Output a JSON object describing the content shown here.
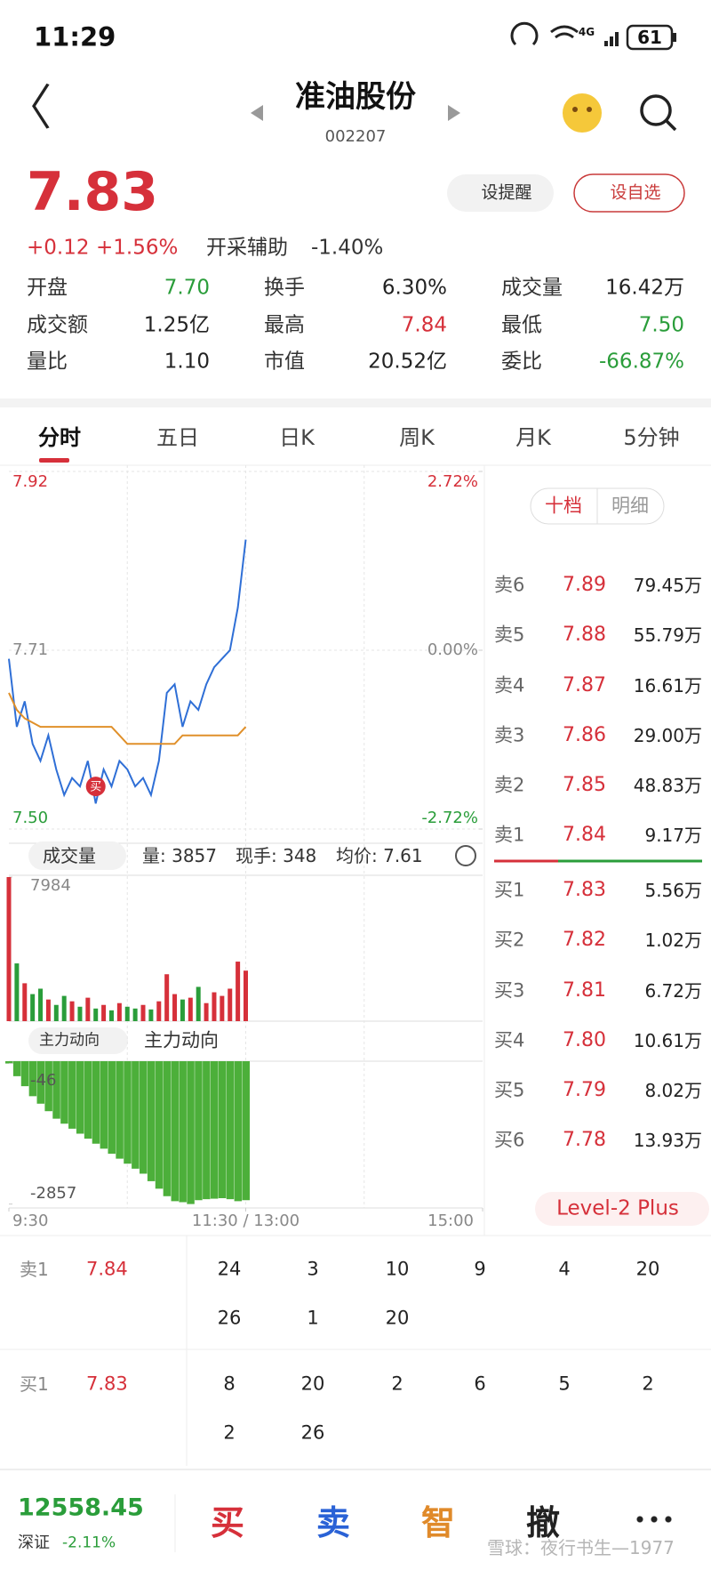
{
  "status_bar": {
    "time": "11:29",
    "network": "4G",
    "battery": "61"
  },
  "header": {
    "title": "准油股份",
    "code": "002207"
  },
  "quote": {
    "price": "7.83",
    "change": "+0.12",
    "change_pct": "+1.56%",
    "assist_label": "开采辅助",
    "assist_value": "-1.40%",
    "buttons": [
      "设提醒",
      "设自选"
    ]
  },
  "stats": [
    {
      "label": "开盘",
      "value": "7.70",
      "color": "#2a9d3a"
    },
    {
      "label": "换手",
      "value": "6.30%",
      "color": "#222222"
    },
    {
      "label": "成交量",
      "value": "16.42万",
      "color": "#222222"
    },
    {
      "label": "成交额",
      "value": "1.25亿",
      "color": "#222222"
    },
    {
      "label": "最高",
      "value": "7.84",
      "color": "#d6303a"
    },
    {
      "label": "最低",
      "value": "7.50",
      "color": "#2a9d3a"
    },
    {
      "label": "量比",
      "value": "1.10",
      "color": "#222222"
    },
    {
      "label": "市值",
      "value": "20.52亿",
      "color": "#222222"
    },
    {
      "label": "委比",
      "value": "-66.87%",
      "color": "#2a9d3a"
    }
  ],
  "tabs": [
    "分时",
    "五日",
    "日K",
    "周K",
    "月K",
    "5分钟"
  ],
  "chart_data": [
    {
      "type": "line",
      "x": [
        0,
        4,
        8,
        12,
        16,
        20,
        24,
        28,
        32,
        36,
        40,
        44,
        48,
        52,
        56,
        60,
        64,
        68,
        72,
        76,
        80,
        84,
        88,
        92,
        96,
        100,
        104,
        108,
        112,
        116,
        120
      ],
      "series": [
        {
          "color": "#2f6fd6",
          "values": [
            7.7,
            7.62,
            7.65,
            7.6,
            7.58,
            7.61,
            7.57,
            7.54,
            7.56,
            7.55,
            7.58,
            7.53,
            7.57,
            7.55,
            7.58,
            7.57,
            7.55,
            7.56,
            7.54,
            7.58,
            7.66,
            7.67,
            7.62,
            7.65,
            7.64,
            7.67,
            7.69,
            7.7,
            7.71,
            7.76,
            7.84
          ]
        },
        {
          "color": "#e0902a",
          "values": [
            7.66,
            7.64,
            7.63,
            7.625,
            7.62,
            7.62,
            7.62,
            7.62,
            7.62,
            7.62,
            7.62,
            7.62,
            7.62,
            7.62,
            7.61,
            7.6,
            7.6,
            7.6,
            7.6,
            7.6,
            7.6,
            7.6,
            7.61,
            7.61,
            7.61,
            7.61,
            7.61,
            7.61,
            7.61,
            7.61,
            7.62
          ]
        }
      ],
      "xlim": [
        0,
        240
      ],
      "xticks": [
        {
          "value": 0,
          "label": "9:30"
        },
        {
          "value": 120,
          "label": "11:30 / 13:00"
        },
        {
          "value": 240,
          "label": "15:00"
        }
      ],
      "ylim": [
        7.5,
        7.92
      ],
      "yticks": [
        7.92,
        7.71,
        {
          "value": 7.5,
          "label": "7.50"
        }
      ],
      "y2lim": [
        -2.72,
        2.72
      ],
      "y2ticks": [
        {
          "value": 2.72,
          "label": "2.72%"
        },
        {
          "value": 0,
          "label": "0.00%"
        },
        {
          "value": -2.72,
          "label": "-2.72%"
        }
      ],
      "marker": {
        "label": "买",
        "x": 44,
        "y": 7.55,
        "color": "#d6303a"
      }
    },
    {
      "type": "bar",
      "selector": "成交量",
      "info": [
        "量: 3857",
        "现手: 348",
        "均价: 7.61"
      ],
      "x": [
        0,
        4,
        8,
        12,
        16,
        20,
        24,
        28,
        32,
        36,
        40,
        44,
        48,
        52,
        56,
        60,
        64,
        68,
        72,
        76,
        80,
        84,
        88,
        92,
        96,
        100,
        104,
        108,
        112,
        116,
        120
      ],
      "values": [
        7984,
        3200,
        2100,
        1500,
        1800,
        1200,
        900,
        1400,
        1100,
        800,
        1300,
        700,
        900,
        600,
        1000,
        800,
        700,
        900,
        650,
        1100,
        2600,
        1500,
        1200,
        1300,
        1900,
        1000,
        1600,
        1400,
        1800,
        3300,
        2800
      ],
      "xlim": [
        0,
        240
      ],
      "ylim": [
        0,
        7984
      ],
      "yticks": [
        7984
      ],
      "up_color": "#d6303a",
      "down_color": "#2a9d3a"
    },
    {
      "type": "bar",
      "selector": "主力动向",
      "title": "主力动向",
      "x": [
        0,
        4,
        8,
        12,
        16,
        20,
        24,
        28,
        32,
        36,
        40,
        44,
        48,
        52,
        56,
        60,
        64,
        68,
        72,
        76,
        80,
        84,
        88,
        92,
        96,
        100,
        104,
        108,
        112,
        116,
        120
      ],
      "values": [
        -46,
        -300,
        -500,
        -700,
        -850,
        -1000,
        -1150,
        -1250,
        -1350,
        -1450,
        -1550,
        -1650,
        -1750,
        -1850,
        -1950,
        -2050,
        -2150,
        -2250,
        -2400,
        -2550,
        -2700,
        -2800,
        -2820,
        -2857,
        -2780,
        -2760,
        -2750,
        -2740,
        -2760,
        -2800,
        -2780
      ],
      "xlim": [
        0,
        240
      ],
      "ylim": [
        -2900,
        0
      ],
      "yticks": [
        -46,
        -2857
      ],
      "color": "#4caf3a"
    }
  ],
  "order_book": {
    "tabs": [
      "十档",
      "明细"
    ],
    "asks": [
      {
        "label": "卖6",
        "price": "7.89",
        "volume": "79.45万"
      },
      {
        "label": "卖5",
        "price": "7.88",
        "volume": "55.79万"
      },
      {
        "label": "卖4",
        "price": "7.87",
        "volume": "16.61万"
      },
      {
        "label": "卖3",
        "price": "7.86",
        "volume": "29.00万"
      },
      {
        "label": "卖2",
        "price": "7.85",
        "volume": "48.83万"
      },
      {
        "label": "卖1",
        "price": "7.84",
        "volume": "9.17万"
      }
    ],
    "bids": [
      {
        "label": "买1",
        "price": "7.83",
        "volume": "5.56万"
      },
      {
        "label": "买2",
        "price": "7.82",
        "volume": "1.02万"
      },
      {
        "label": "买3",
        "price": "7.81",
        "volume": "6.72万"
      },
      {
        "label": "买4",
        "price": "7.80",
        "volume": "10.61万"
      },
      {
        "label": "买5",
        "price": "7.79",
        "volume": "8.02万"
      },
      {
        "label": "买6",
        "price": "7.78",
        "volume": "13.93万"
      }
    ],
    "promo": "Level-2 Plus"
  },
  "queue": [
    {
      "label": "卖1",
      "price": "7.84",
      "orders": [
        "24",
        "3",
        "10",
        "9",
        "4",
        "20",
        "26",
        "1",
        "20"
      ]
    },
    {
      "label": "买1",
      "price": "7.83",
      "orders": [
        "8",
        "20",
        "2",
        "6",
        "5",
        "2",
        "2",
        "26"
      ]
    }
  ],
  "index": {
    "value": "12558.45",
    "name": "深证",
    "change": "-2.11%"
  },
  "actions": [
    "买",
    "卖",
    "智",
    "撤"
  ],
  "watermark": "雪球：夜行书生—1977"
}
